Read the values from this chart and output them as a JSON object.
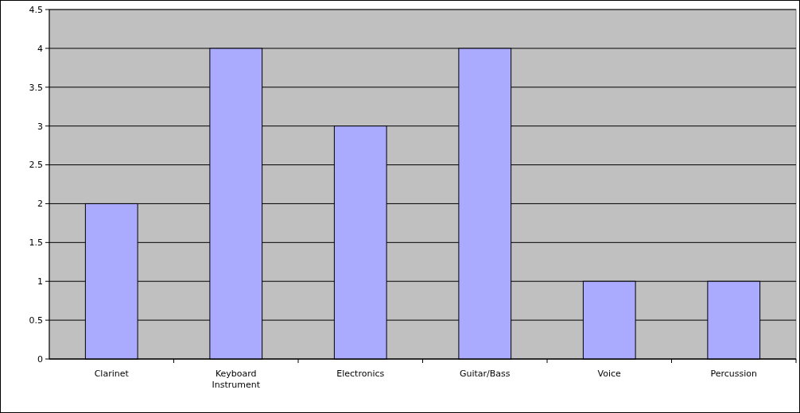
{
  "chart_data": {
    "type": "bar",
    "categories": [
      "Clarinet",
      "Keyboard Instrument",
      "Electronics",
      "Guitar/Bass",
      "Voice",
      "Percussion"
    ],
    "values": [
      2,
      4,
      3,
      4,
      1,
      1
    ],
    "color": "#aaaaff",
    "ylim": [
      0,
      4.5
    ],
    "yticks": [
      0,
      0.5,
      1,
      1.5,
      2,
      2.5,
      3,
      3.5,
      4,
      4.5
    ],
    "grid": "y"
  }
}
